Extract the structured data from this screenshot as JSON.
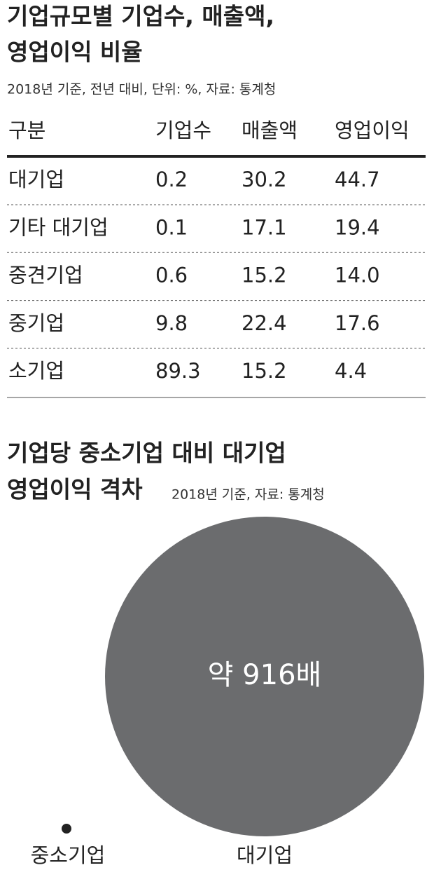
{
  "section1": {
    "title_lines": [
      "기업규모별 기업수, 매출액,",
      "영업이익 비율"
    ],
    "note": "2018년 기준, 전년 대비, 단위: %, 자료: 통계청",
    "table": {
      "header": [
        "구분",
        "기업수",
        "매출액",
        "영업이익"
      ],
      "rows": [
        [
          "대기업",
          "0.2",
          "30.2",
          "44.7"
        ],
        [
          "기타 대기업",
          "0.1",
          "17.1",
          "19.4"
        ],
        [
          "중견기업",
          "0.6",
          "15.2",
          "14.0"
        ],
        [
          "중기업",
          "9.8",
          "22.4",
          "17.6"
        ],
        [
          "소기업",
          "89.3",
          "15.2",
          "4.4"
        ]
      ]
    }
  },
  "section2": {
    "title_lines": [
      "기업당 중소기업 대비 대기업",
      "영업이익 격차"
    ],
    "note": "2018년 기준, 자료: 통계청",
    "bubble_label": "약 916배",
    "labels": [
      "중소기업",
      "대기업"
    ]
  }
}
